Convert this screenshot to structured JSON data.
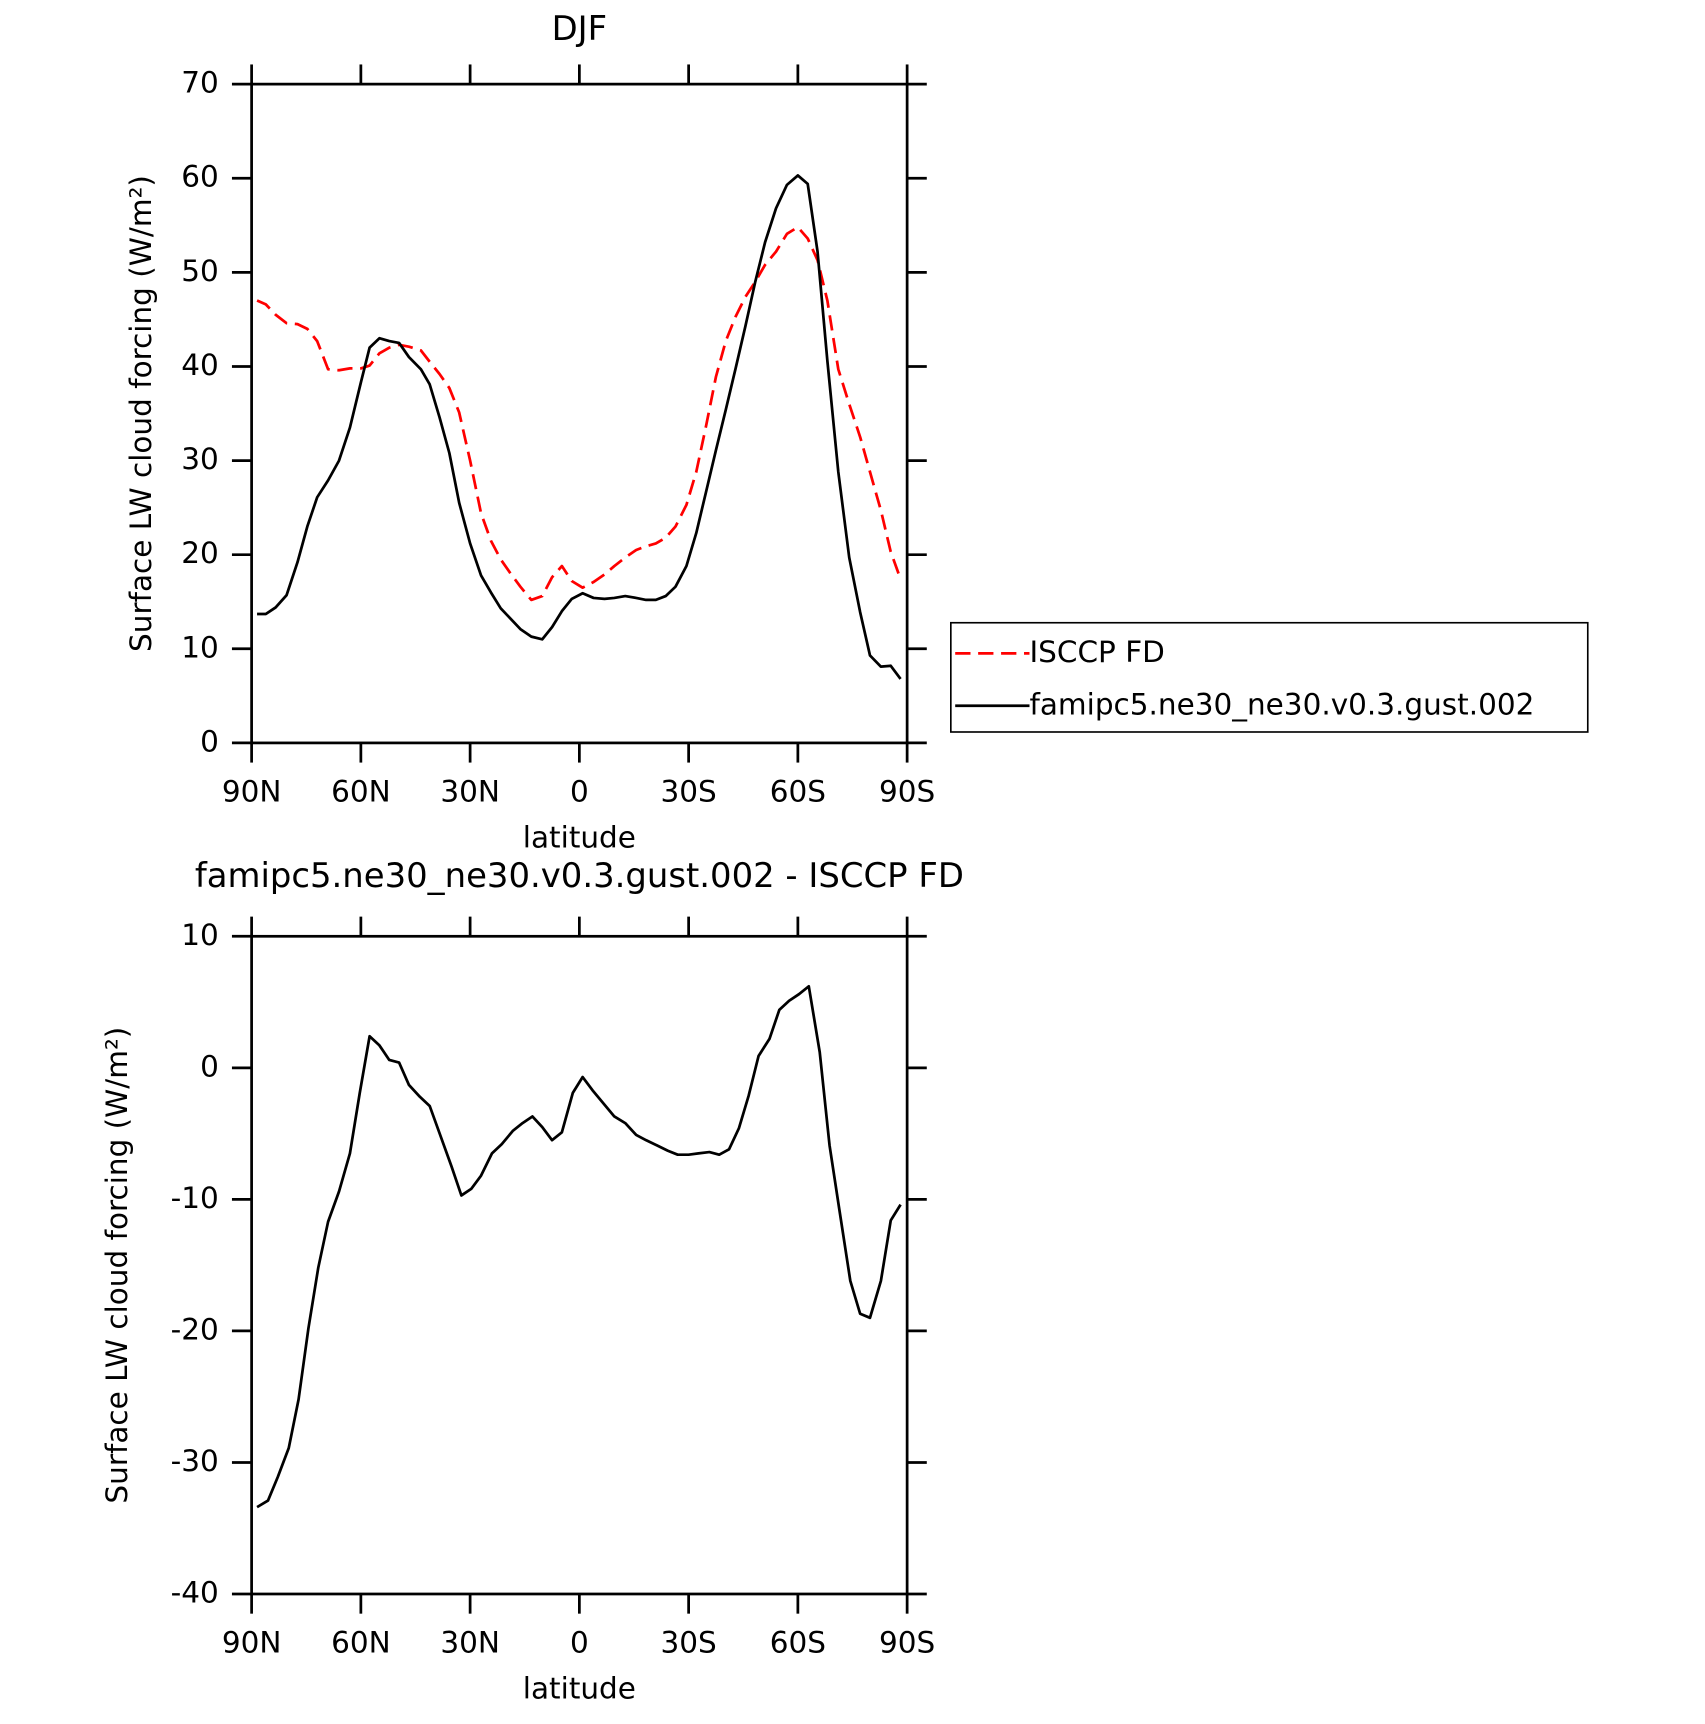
{
  "chart_data": [
    {
      "type": "line",
      "title": "DJF",
      "xlabel": "latitude",
      "ylabel": "Surface LW cloud forcing (W/m²)",
      "x": [
        88.5,
        86.1,
        83.4,
        80.4,
        77.4,
        74.7,
        72.0,
        69.0,
        66.0,
        63.0,
        60.0,
        57.6,
        54.9,
        52.2,
        49.5,
        46.8,
        43.5,
        41.1,
        38.4,
        35.7,
        33.0,
        30.0,
        27.0,
        24.3,
        21.6,
        18.9,
        16.2,
        13.2,
        10.2,
        7.5,
        4.8,
        2.1,
        -0.9,
        -3.9,
        -6.9,
        -9.6,
        -12.6,
        -15.6,
        -18.3,
        -21.0,
        -23.7,
        -26.4,
        -29.4,
        -32.1,
        -34.8,
        -37.5,
        -40.2,
        -42.9,
        -45.6,
        -48.3,
        -51.0,
        -54.0,
        -57.0,
        -60.0,
        -62.7,
        -65.4,
        -68.1,
        -71.1,
        -74.1,
        -77.1,
        -79.8,
        -82.8,
        -85.5,
        -88.2
      ],
      "xlim": [
        90,
        -90
      ],
      "xticks": [
        {
          "value": 90,
          "label": "90N"
        },
        {
          "value": 60,
          "label": "60N"
        },
        {
          "value": 30,
          "label": "30N"
        },
        0,
        {
          "value": -30,
          "label": "30S"
        },
        {
          "value": -60,
          "label": "60S"
        },
        {
          "value": -90,
          "label": "90S"
        }
      ],
      "ylim": [
        0,
        70
      ],
      "yticks": [
        0,
        10,
        20,
        30,
        40,
        50,
        60,
        70
      ],
      "legend": "right",
      "series": [
        {
          "name": "ISCCP FD",
          "color": "#ff0000",
          "dashed": true,
          "values": [
            47.0,
            46.6,
            45.5,
            44.6,
            44.5,
            44.0,
            42.7,
            39.7,
            39.6,
            39.8,
            39.8,
            40.1,
            41.4,
            42.0,
            42.3,
            42.1,
            41.7,
            40.5,
            39.2,
            37.7,
            35.1,
            30.0,
            24.4,
            21.5,
            19.5,
            18.0,
            16.6,
            15.2,
            15.6,
            17.6,
            18.8,
            17.2,
            16.5,
            17.1,
            17.9,
            18.8,
            19.7,
            20.5,
            20.9,
            21.2,
            21.8,
            23.0,
            25.3,
            28.8,
            33.7,
            38.9,
            42.7,
            45.3,
            47.4,
            49.0,
            50.8,
            52.2,
            54.1,
            54.8,
            53.6,
            51.3,
            47.0,
            39.7,
            36.0,
            32.5,
            28.8,
            24.7,
            20.3,
            17.4
          ]
        },
        {
          "name": "famipc5.ne30_ne30.v0.3.gust.002",
          "color": "#000000",
          "dashed": false,
          "values": [
            13.7,
            13.7,
            14.4,
            15.7,
            19.2,
            23.0,
            26.1,
            27.9,
            30.0,
            33.5,
            38.3,
            42.0,
            43.0,
            42.7,
            42.5,
            41.0,
            39.7,
            38.1,
            34.6,
            30.8,
            25.5,
            21.2,
            17.8,
            16.0,
            14.3,
            13.2,
            12.1,
            11.3,
            11.0,
            12.3,
            14.0,
            15.3,
            15.9,
            15.4,
            15.3,
            15.4,
            15.6,
            15.4,
            15.2,
            15.2,
            15.6,
            16.6,
            18.8,
            22.3,
            26.7,
            31.1,
            35.4,
            39.8,
            44.3,
            49.0,
            53.2,
            56.8,
            59.3,
            60.3,
            59.4,
            52.2,
            40.6,
            28.8,
            19.7,
            13.9,
            9.3,
            8.1,
            8.2,
            6.8
          ]
        }
      ]
    },
    {
      "type": "line",
      "title": "famipc5.ne30_ne30.v0.3.gust.002 - ISCCP FD",
      "xlabel": "latitude",
      "ylabel": "Surface LW cloud forcing (W/m²)",
      "x": [
        88.5,
        85.5,
        82.8,
        79.8,
        77.1,
        74.4,
        71.7,
        69.0,
        66.0,
        63.0,
        60.3,
        57.6,
        54.9,
        52.2,
        49.5,
        46.8,
        43.8,
        41.1,
        38.1,
        35.1,
        32.4,
        29.7,
        27.0,
        24.0,
        21.3,
        18.3,
        15.6,
        12.9,
        10.2,
        7.5,
        4.8,
        1.8,
        -0.9,
        -3.6,
        -6.6,
        -9.6,
        -12.6,
        -15.6,
        -18.3,
        -21.3,
        -24.3,
        -27.0,
        -30.0,
        -32.7,
        -35.7,
        -38.4,
        -41.1,
        -43.8,
        -46.5,
        -49.2,
        -52.2,
        -54.9,
        -57.6,
        -60.3,
        -63.0,
        -66.0,
        -68.7,
        -71.4,
        -74.4,
        -77.1,
        -79.8,
        -82.8,
        -85.5,
        -88.2
      ],
      "xlim": [
        90,
        -90
      ],
      "xticks": [
        {
          "value": 90,
          "label": "90N"
        },
        {
          "value": 60,
          "label": "60N"
        },
        {
          "value": 30,
          "label": "30N"
        },
        0,
        {
          "value": -30,
          "label": "30S"
        },
        {
          "value": -60,
          "label": "60S"
        },
        {
          "value": -90,
          "label": "90S"
        }
      ],
      "ylim": [
        -40,
        10
      ],
      "yticks": [
        -40,
        -30,
        -20,
        -10,
        0,
        10
      ],
      "series": [
        {
          "color": "#000000",
          "dashed": false,
          "values": [
            -33.4,
            -32.9,
            -31.1,
            -28.9,
            -25.2,
            -19.8,
            -15.2,
            -11.7,
            -9.4,
            -6.5,
            -1.9,
            2.4,
            1.7,
            0.6,
            0.4,
            -1.3,
            -2.2,
            -2.9,
            -5.2,
            -7.5,
            -9.7,
            -9.2,
            -8.2,
            -6.5,
            -5.8,
            -4.8,
            -4.2,
            -3.7,
            -4.5,
            -5.5,
            -4.9,
            -1.9,
            -0.7,
            -1.7,
            -2.7,
            -3.7,
            -4.2,
            -5.1,
            -5.5,
            -5.9,
            -6.3,
            -6.6,
            -6.6,
            -6.5,
            -6.4,
            -6.6,
            -6.2,
            -4.6,
            -2.1,
            0.9,
            2.2,
            4.4,
            5.1,
            5.6,
            6.2,
            1.2,
            -5.9,
            -10.8,
            -16.2,
            -18.7,
            -19.0,
            -16.2,
            -11.6,
            -10.4
          ]
        }
      ]
    }
  ]
}
